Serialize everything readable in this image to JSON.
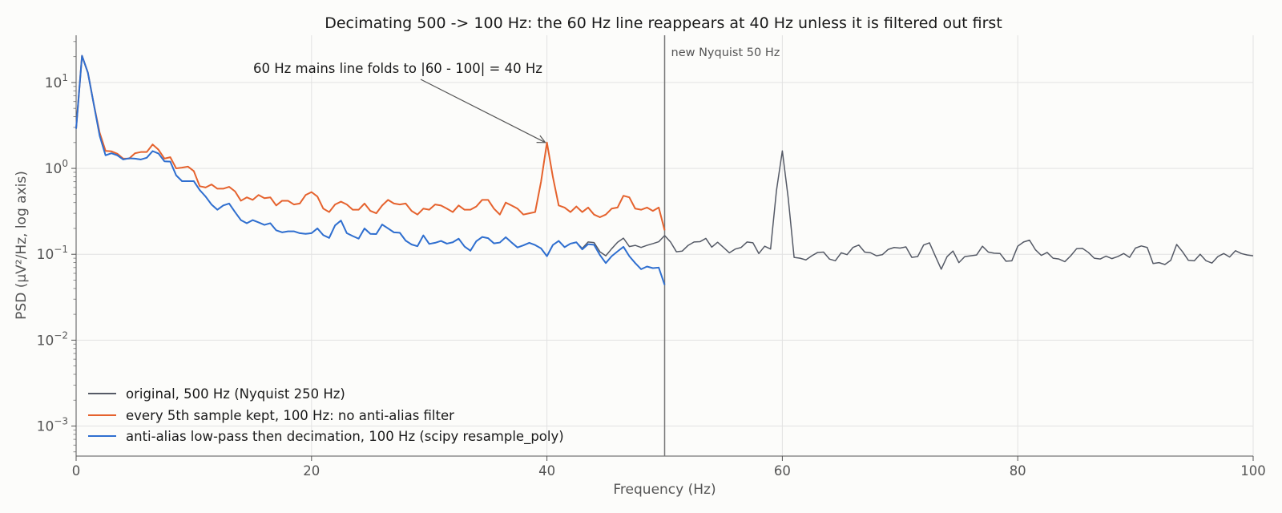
{
  "chart_data": {
    "type": "line",
    "title": "Decimating 500 -> 100 Hz: the 60 Hz line reappears at 40 Hz unless it is filtered out first",
    "xlabel": "Frequency (Hz)",
    "ylabel": "PSD (µV²/Hz, log axis)",
    "xlim": [
      0,
      100
    ],
    "ylim_log10": [
      -3.35,
      1.55
    ],
    "yscale": "log",
    "grid": true,
    "legend_position": "lower-left",
    "x_ticks": [
      0,
      20,
      40,
      60,
      80,
      100
    ],
    "x_tick_labels": [
      "0",
      "20",
      "40",
      "60",
      "80",
      "100"
    ],
    "y_ticks_log10": [
      1,
      0,
      -1,
      -2,
      -3
    ],
    "y_tick_labels": [
      {
        "base": "10",
        "exp": "1"
      },
      {
        "base": "10",
        "exp": "0"
      },
      {
        "base": "10",
        "exp": "−1"
      },
      {
        "base": "10",
        "exp": "−2"
      },
      {
        "base": "10",
        "exp": "−3"
      }
    ],
    "vline": {
      "x": 50,
      "label": "new Nyquist 50 Hz",
      "color": "#777777"
    },
    "annotation": {
      "text": "60 Hz mains line folds to |60 - 100| = 40 Hz",
      "x": 40,
      "y": 2.0
    },
    "series": [
      {
        "name": "original, 500 Hz (Nyquist 250 Hz)",
        "color": "#555a66",
        "x": [
          0,
          0.5,
          1,
          1.5,
          2,
          2.5,
          3,
          3.5,
          4,
          4.5,
          5,
          5.5,
          6,
          6.5,
          7,
          7.5,
          8,
          8.5,
          9,
          9.5,
          10,
          10.5,
          11,
          11.5,
          12,
          12.5,
          13,
          13.5,
          14,
          14.5,
          15,
          15.5,
          16,
          16.5,
          17,
          17.5,
          18,
          18.5,
          19,
          19.5,
          20,
          20.5,
          21,
          21.5,
          22,
          22.5,
          23,
          23.5,
          24,
          24.5,
          25,
          25.5,
          26,
          26.5,
          27,
          27.5,
          28,
          28.5,
          29,
          29.5,
          30,
          30.5,
          31,
          31.5,
          32,
          32.5,
          33,
          33.5,
          34,
          34.5,
          35,
          35.5,
          36,
          36.5,
          37,
          37.5,
          38,
          38.5,
          39,
          39.5,
          40,
          40.5,
          41,
          41.5,
          42,
          42.5,
          43,
          43.5,
          44,
          44.5,
          45,
          45.5,
          46,
          46.5,
          47,
          47.5,
          48,
          48.5,
          49,
          49.5,
          50,
          50.5,
          51,
          51.5,
          52,
          52.5,
          53,
          53.5,
          54,
          54.5,
          55,
          55.5,
          56,
          56.5,
          57,
          57.5,
          58,
          58.5,
          59,
          59.5,
          60,
          60.5,
          61,
          61.5,
          62,
          62.5,
          63,
          63.5,
          64,
          64.5,
          65,
          65.5,
          66,
          66.5,
          67,
          67.5,
          68,
          68.5,
          69,
          69.5,
          70,
          70.5,
          71,
          71.5,
          72,
          72.5,
          73,
          73.5,
          74,
          74.5,
          75,
          75.5,
          76,
          76.5,
          77,
          77.5,
          78,
          78.5,
          79,
          79.5,
          80,
          80.5,
          81,
          81.5,
          82,
          82.5,
          83,
          83.5,
          84,
          84.5,
          85,
          85.5,
          86,
          86.5,
          87,
          87.5,
          88,
          88.5,
          89,
          89.5,
          90,
          90.5,
          91,
          91.5,
          92,
          92.5,
          93,
          93.5,
          94,
          94.5,
          95,
          95.5,
          96,
          96.5,
          97,
          97.5,
          98,
          98.5,
          99,
          99.5,
          100
        ],
        "y": [
          2.9,
          20.5,
          13.0,
          5.6,
          2.4,
          1.42,
          1.5,
          1.42,
          1.27,
          1.31,
          1.3,
          1.27,
          1.33,
          1.59,
          1.49,
          1.21,
          1.2,
          0.83,
          0.71,
          0.71,
          0.71,
          0.56,
          0.47,
          0.38,
          0.33,
          0.37,
          0.39,
          0.31,
          0.25,
          0.23,
          0.25,
          0.235,
          0.22,
          0.23,
          0.19,
          0.18,
          0.185,
          0.185,
          0.176,
          0.173,
          0.176,
          0.2,
          0.167,
          0.155,
          0.217,
          0.247,
          0.176,
          0.163,
          0.152,
          0.2,
          0.173,
          0.172,
          0.222,
          0.2,
          0.18,
          0.178,
          0.144,
          0.13,
          0.124,
          0.166,
          0.132,
          0.136,
          0.143,
          0.133,
          0.138,
          0.152,
          0.123,
          0.11,
          0.142,
          0.159,
          0.154,
          0.134,
          0.137,
          0.158,
          0.137,
          0.12,
          0.127,
          0.136,
          0.128,
          0.117,
          0.095,
          0.128,
          0.143,
          0.121,
          0.133,
          0.138,
          0.117,
          0.139,
          0.137,
          0.107,
          0.096,
          0.116,
          0.138,
          0.154,
          0.123,
          0.127,
          0.12,
          0.127,
          0.133,
          0.14,
          0.165,
          0.139,
          0.107,
          0.109,
          0.127,
          0.139,
          0.14,
          0.153,
          0.121,
          0.138,
          0.12,
          0.104,
          0.115,
          0.12,
          0.139,
          0.136,
          0.102,
          0.124,
          0.115,
          0.55,
          1.6,
          0.45,
          0.092,
          0.09,
          0.086,
          0.096,
          0.105,
          0.106,
          0.088,
          0.084,
          0.104,
          0.099,
          0.12,
          0.128,
          0.106,
          0.104,
          0.096,
          0.099,
          0.114,
          0.12,
          0.118,
          0.122,
          0.092,
          0.094,
          0.128,
          0.136,
          0.095,
          0.067,
          0.094,
          0.109,
          0.08,
          0.094,
          0.096,
          0.098,
          0.124,
          0.106,
          0.103,
          0.102,
          0.083,
          0.084,
          0.124,
          0.139,
          0.146,
          0.113,
          0.097,
          0.105,
          0.09,
          0.088,
          0.082,
          0.096,
          0.116,
          0.117,
          0.105,
          0.09,
          0.088,
          0.095,
          0.089,
          0.094,
          0.102,
          0.092,
          0.118,
          0.125,
          0.12,
          0.078,
          0.08,
          0.076,
          0.085,
          0.13,
          0.107,
          0.085,
          0.084,
          0.1,
          0.084,
          0.079,
          0.094,
          0.102,
          0.093,
          0.11,
          0.102,
          0.098,
          0.096
        ]
      },
      {
        "name": "every 5th sample kept, 100 Hz: no anti-alias filter",
        "color": "#e5622d",
        "x": [
          0,
          0.5,
          1,
          1.5,
          2,
          2.5,
          3,
          3.5,
          4,
          4.5,
          5,
          5.5,
          6,
          6.5,
          7,
          7.5,
          8,
          8.5,
          9,
          9.5,
          10,
          10.5,
          11,
          11.5,
          12,
          12.5,
          13,
          13.5,
          14,
          14.5,
          15,
          15.5,
          16,
          16.5,
          17,
          17.5,
          18,
          18.5,
          19,
          19.5,
          20,
          20.5,
          21,
          21.5,
          22,
          22.5,
          23,
          23.5,
          24,
          24.5,
          25,
          25.5,
          26,
          26.5,
          27,
          27.5,
          28,
          28.5,
          29,
          29.5,
          30,
          30.5,
          31,
          31.5,
          32,
          32.5,
          33,
          33.5,
          34,
          34.5,
          35,
          35.5,
          36,
          36.5,
          37,
          37.5,
          38,
          38.5,
          39,
          39.5,
          40,
          40.5,
          41,
          41.5,
          42,
          42.5,
          43,
          43.5,
          44,
          44.5,
          45,
          45.5,
          46,
          46.5,
          47,
          47.5,
          48,
          48.5,
          49,
          49.5,
          50
        ],
        "y": [
          2.9,
          20.5,
          13.0,
          5.6,
          2.6,
          1.6,
          1.58,
          1.48,
          1.3,
          1.3,
          1.5,
          1.55,
          1.55,
          1.9,
          1.65,
          1.3,
          1.35,
          1.0,
          1.02,
          1.05,
          0.93,
          0.62,
          0.6,
          0.65,
          0.58,
          0.58,
          0.61,
          0.54,
          0.42,
          0.46,
          0.43,
          0.49,
          0.45,
          0.46,
          0.37,
          0.42,
          0.42,
          0.38,
          0.39,
          0.49,
          0.53,
          0.47,
          0.34,
          0.31,
          0.38,
          0.41,
          0.38,
          0.33,
          0.33,
          0.39,
          0.32,
          0.3,
          0.37,
          0.43,
          0.39,
          0.38,
          0.39,
          0.32,
          0.29,
          0.34,
          0.33,
          0.38,
          0.37,
          0.34,
          0.31,
          0.37,
          0.33,
          0.33,
          0.36,
          0.43,
          0.43,
          0.34,
          0.29,
          0.4,
          0.37,
          0.34,
          0.29,
          0.3,
          0.31,
          0.7,
          2.0,
          0.8,
          0.37,
          0.35,
          0.31,
          0.36,
          0.31,
          0.35,
          0.29,
          0.27,
          0.29,
          0.34,
          0.35,
          0.48,
          0.46,
          0.34,
          0.33,
          0.35,
          0.32,
          0.35,
          0.19
        ]
      },
      {
        "name": "anti-alias low-pass then decimation, 100 Hz (scipy resample_poly)",
        "color": "#2f6fd0",
        "x": [
          0,
          0.5,
          1,
          1.5,
          2,
          2.5,
          3,
          3.5,
          4,
          4.5,
          5,
          5.5,
          6,
          6.5,
          7,
          7.5,
          8,
          8.5,
          9,
          9.5,
          10,
          10.5,
          11,
          11.5,
          12,
          12.5,
          13,
          13.5,
          14,
          14.5,
          15,
          15.5,
          16,
          16.5,
          17,
          17.5,
          18,
          18.5,
          19,
          19.5,
          20,
          20.5,
          21,
          21.5,
          22,
          22.5,
          23,
          23.5,
          24,
          24.5,
          25,
          25.5,
          26,
          26.5,
          27,
          27.5,
          28,
          28.5,
          29,
          29.5,
          30,
          30.5,
          31,
          31.5,
          32,
          32.5,
          33,
          33.5,
          34,
          34.5,
          35,
          35.5,
          36,
          36.5,
          37,
          37.5,
          38,
          38.5,
          39,
          39.5,
          40,
          40.5,
          41,
          41.5,
          42,
          42.5,
          43,
          43.5,
          44,
          44.5,
          45,
          45.5,
          46,
          46.5,
          47,
          47.5,
          48,
          48.5,
          49,
          49.5,
          50
        ],
        "y": [
          2.9,
          20.5,
          13.0,
          5.6,
          2.4,
          1.42,
          1.5,
          1.42,
          1.27,
          1.31,
          1.3,
          1.27,
          1.33,
          1.59,
          1.49,
          1.21,
          1.2,
          0.83,
          0.71,
          0.71,
          0.71,
          0.56,
          0.47,
          0.38,
          0.33,
          0.37,
          0.39,
          0.31,
          0.25,
          0.23,
          0.25,
          0.235,
          0.22,
          0.23,
          0.19,
          0.18,
          0.185,
          0.185,
          0.176,
          0.173,
          0.176,
          0.2,
          0.167,
          0.155,
          0.217,
          0.247,
          0.176,
          0.163,
          0.152,
          0.2,
          0.173,
          0.172,
          0.222,
          0.2,
          0.18,
          0.178,
          0.144,
          0.13,
          0.124,
          0.166,
          0.132,
          0.136,
          0.143,
          0.133,
          0.138,
          0.152,
          0.123,
          0.11,
          0.142,
          0.159,
          0.154,
          0.134,
          0.137,
          0.158,
          0.137,
          0.12,
          0.127,
          0.136,
          0.128,
          0.117,
          0.095,
          0.128,
          0.143,
          0.121,
          0.133,
          0.138,
          0.114,
          0.131,
          0.129,
          0.098,
          0.079,
          0.095,
          0.108,
          0.122,
          0.095,
          0.079,
          0.067,
          0.072,
          0.069,
          0.07,
          0.044
        ]
      }
    ]
  }
}
